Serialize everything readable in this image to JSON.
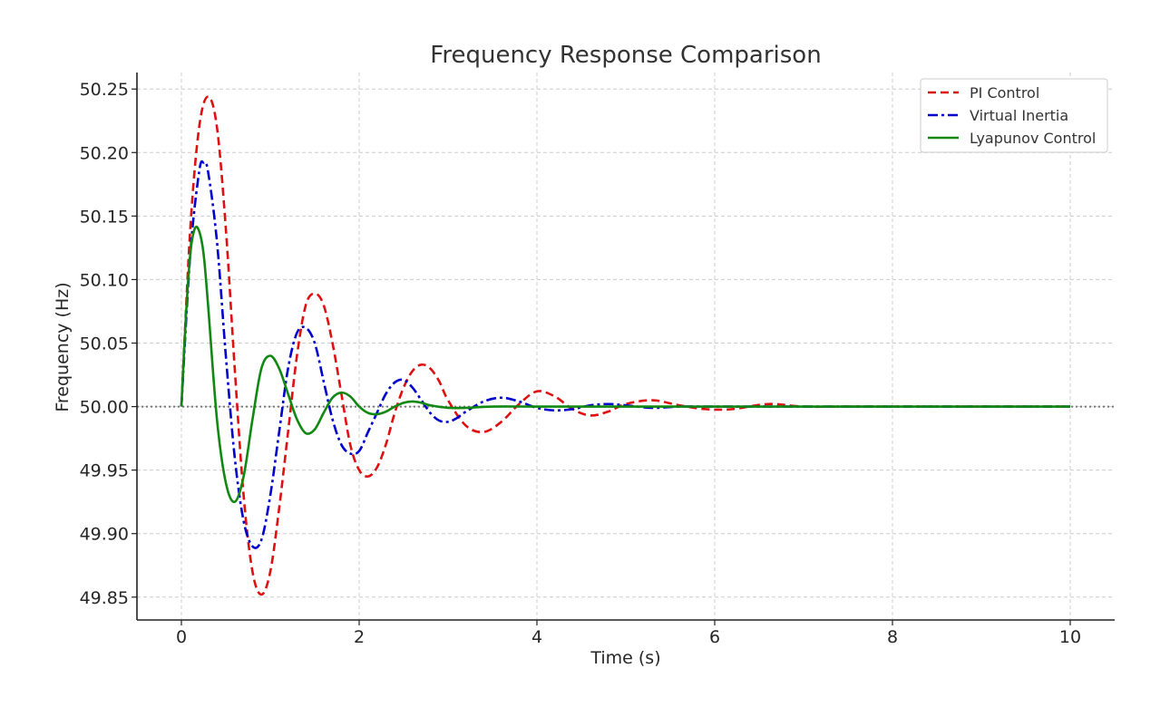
{
  "chart_data": {
    "type": "line",
    "title": "Frequency Response Comparison",
    "xlabel": "Time (s)",
    "ylabel": "Frequency (Hz)",
    "xlim": [
      -0.5,
      10.5
    ],
    "ylim": [
      49.832,
      50.263
    ],
    "xticks": [
      0,
      2,
      4,
      6,
      8,
      10
    ],
    "xtick_labels": [
      "0",
      "2",
      "4",
      "6",
      "8",
      "10"
    ],
    "yticks": [
      49.85,
      49.9,
      49.95,
      50.0,
      50.05,
      50.1,
      50.15,
      50.2,
      50.25
    ],
    "ytick_labels": [
      "49.85",
      "49.90",
      "49.95",
      "50.00",
      "50.05",
      "50.10",
      "50.15",
      "50.20",
      "50.25"
    ],
    "grid": true,
    "legend_position": "top-right",
    "reference_line": {
      "y": 50.0,
      "color": "#777777",
      "style": "dotted"
    },
    "series": [
      {
        "name": "PI Control",
        "color": "#dd1111",
        "style": "dashed",
        "x": [
          0,
          0.1,
          0.2,
          0.3,
          0.4,
          0.5,
          0.6,
          0.7,
          0.8,
          0.9,
          1.0,
          1.1,
          1.2,
          1.3,
          1.4,
          1.5,
          1.6,
          1.7,
          1.8,
          1.9,
          2.0,
          2.1,
          2.2,
          2.3,
          2.4,
          2.5,
          2.6,
          2.7,
          2.8,
          2.9,
          3.0,
          3.2,
          3.4,
          3.6,
          3.8,
          4.0,
          4.2,
          4.4,
          4.6,
          4.8,
          5.0,
          5.3,
          5.6,
          5.9,
          6.2,
          6.6,
          7.0,
          7.5,
          8.0,
          9.0,
          10.0
        ],
        "y": [
          50.0,
          50.14,
          50.22,
          50.244,
          50.22,
          50.14,
          50.03,
          49.93,
          49.87,
          49.852,
          49.87,
          49.92,
          49.98,
          50.04,
          50.08,
          50.089,
          50.08,
          50.05,
          50.01,
          49.97,
          49.95,
          49.945,
          49.952,
          49.97,
          49.995,
          50.015,
          50.028,
          50.033,
          50.03,
          50.02,
          50.005,
          49.985,
          49.98,
          49.988,
          50.002,
          50.012,
          50.008,
          49.998,
          49.993,
          49.996,
          50.002,
          50.005,
          50.001,
          49.998,
          49.998,
          50.002,
          50.0,
          50.0,
          50.0,
          50.0,
          50.0
        ]
      },
      {
        "name": "Virtual Inertia",
        "color": "#0000cc",
        "style": "dashdot",
        "x": [
          0,
          0.1,
          0.2,
          0.25,
          0.3,
          0.4,
          0.5,
          0.6,
          0.7,
          0.8,
          0.9,
          1.0,
          1.1,
          1.2,
          1.3,
          1.4,
          1.5,
          1.6,
          1.7,
          1.8,
          1.9,
          2.0,
          2.1,
          2.2,
          2.3,
          2.4,
          2.5,
          2.6,
          2.7,
          2.8,
          2.9,
          3.0,
          3.1,
          3.2,
          3.4,
          3.6,
          3.8,
          4.0,
          4.2,
          4.4,
          4.6,
          4.8,
          5.0,
          5.3,
          5.6,
          6.0,
          6.5,
          7.0,
          8.0,
          9.0,
          10.0
        ],
        "y": [
          50.0,
          50.12,
          50.185,
          50.192,
          50.185,
          50.13,
          50.04,
          49.96,
          49.91,
          49.89,
          49.895,
          49.93,
          49.98,
          50.03,
          50.058,
          50.062,
          50.05,
          50.02,
          49.99,
          49.97,
          49.963,
          49.965,
          49.98,
          49.995,
          50.01,
          50.019,
          50.021,
          50.015,
          50.005,
          49.995,
          49.989,
          49.988,
          49.991,
          49.996,
          50.004,
          50.007,
          50.004,
          49.999,
          49.997,
          49.998,
          50.001,
          50.002,
          50.001,
          49.999,
          50.0,
          50.0,
          50.0,
          50.0,
          50.0,
          50.0,
          50.0
        ]
      },
      {
        "name": "Lyapunov Control",
        "color": "#118811",
        "style": "solid",
        "x": [
          0,
          0.05,
          0.1,
          0.15,
          0.2,
          0.25,
          0.3,
          0.4,
          0.5,
          0.6,
          0.7,
          0.8,
          0.9,
          1.0,
          1.1,
          1.2,
          1.3,
          1.4,
          1.5,
          1.6,
          1.7,
          1.8,
          1.9,
          2.0,
          2.1,
          2.2,
          2.3,
          2.4,
          2.5,
          2.6,
          2.7,
          2.8,
          3.0,
          3.2,
          3.5,
          4.0,
          5.0,
          6.0,
          7.0,
          8.0,
          10.0
        ],
        "y": [
          50.0,
          50.07,
          50.12,
          50.14,
          50.138,
          50.12,
          50.08,
          49.99,
          49.94,
          49.925,
          49.945,
          49.99,
          50.03,
          50.04,
          50.03,
          50.01,
          49.99,
          49.979,
          49.982,
          49.995,
          50.007,
          50.011,
          50.008,
          50.0,
          49.995,
          49.994,
          49.996,
          50.0,
          50.003,
          50.004,
          50.003,
          50.001,
          49.999,
          49.999,
          50.0,
          50.0,
          50.0,
          50.0,
          50.0,
          50.0,
          50.0
        ]
      }
    ]
  }
}
